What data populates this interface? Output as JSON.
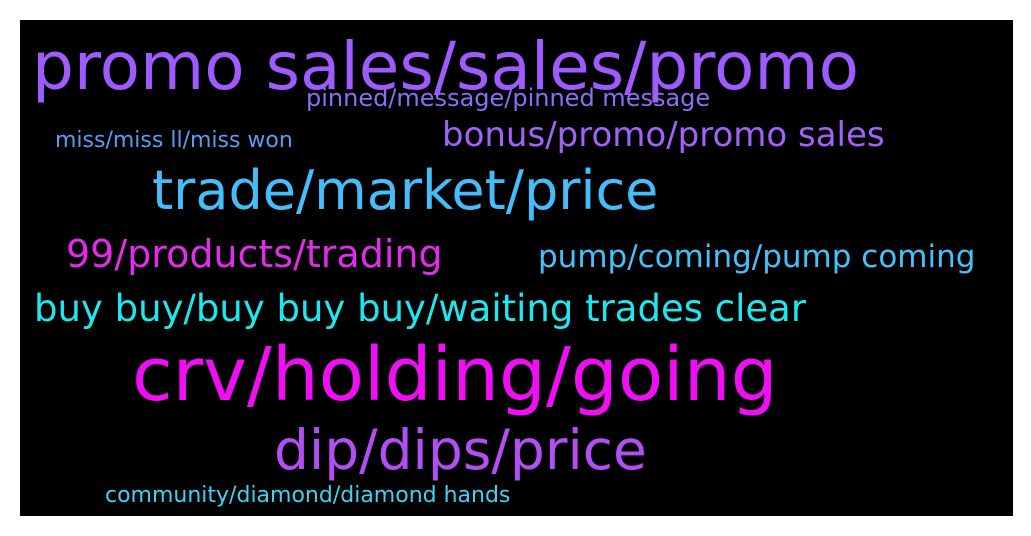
{
  "words": [
    {
      "key": "promo",
      "text": "promo sales/sales/promo",
      "color": "#9e5bff"
    },
    {
      "key": "pinned",
      "text": "pinned/message/pinned message",
      "color": "#8b6ef5"
    },
    {
      "key": "miss",
      "text": "miss/miss ll/miss won",
      "color": "#5b9cf2"
    },
    {
      "key": "bonus",
      "text": "bonus/promo/promo sales",
      "color": "#a062f7"
    },
    {
      "key": "trade",
      "text": "trade/market/price",
      "color": "#44bdfa"
    },
    {
      "key": "99",
      "text": "99/products/trading",
      "color": "#e12ce8"
    },
    {
      "key": "pump",
      "text": "pump/coming/pump coming",
      "color": "#46c0fa"
    },
    {
      "key": "buy",
      "text": "buy buy/buy buy buy/waiting trades clear",
      "color": "#1de8ef"
    },
    {
      "key": "crv",
      "text": "crv/holding/going",
      "color": "#f00ef5"
    },
    {
      "key": "dip",
      "text": "dip/dips/price",
      "color": "#b14ff3"
    },
    {
      "key": "community",
      "text": "community/diamond/diamond hands",
      "color": "#3ed3f3"
    }
  ]
}
